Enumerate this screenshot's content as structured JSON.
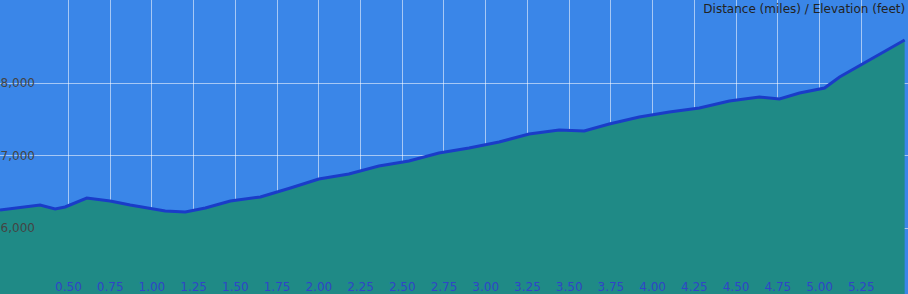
{
  "chart_data": {
    "type": "area",
    "title": "Distance (miles) / Elevation (feet)",
    "x": [
      0.09,
      0.33,
      0.42,
      0.48,
      0.61,
      0.75,
      0.87,
      1.08,
      1.2,
      1.32,
      1.47,
      1.65,
      1.83,
      2.0,
      2.18,
      2.36,
      2.54,
      2.72,
      2.9,
      3.08,
      3.26,
      3.44,
      3.59,
      3.74,
      3.92,
      4.1,
      4.28,
      4.46,
      4.64,
      4.76,
      4.88,
      5.03,
      5.12,
      5.3,
      5.51
    ],
    "values": [
      6250,
      6317,
      6262,
      6290,
      6414,
      6372,
      6317,
      6234,
      6220,
      6276,
      6372,
      6428,
      6552,
      6676,
      6745,
      6855,
      6924,
      7034,
      7103,
      7186,
      7297,
      7352,
      7338,
      7434,
      7531,
      7600,
      7655,
      7752,
      7807,
      7779,
      7862,
      7931,
      8083,
      8317,
      8593
    ],
    "color": "#1f8a86",
    "xlim": [
      0.09,
      5.53
    ],
    "xticks": [
      {
        "value": 0.5,
        "label": "0.50"
      },
      0.75,
      {
        "value": 1,
        "label": "1.00"
      },
      1.25,
      {
        "value": 1.5,
        "label": "1.50"
      },
      1.75,
      {
        "value": 2,
        "label": "2.00"
      },
      2.25,
      {
        "value": 2.5,
        "label": "2.50"
      },
      2.75,
      {
        "value": 3,
        "label": "3.00"
      },
      3.25,
      {
        "value": 3.5,
        "label": "3.50"
      },
      3.75,
      {
        "value": 4,
        "label": "4.00"
      },
      4.25,
      {
        "value": 4.5,
        "label": "4.50"
      },
      4.75,
      {
        "value": 5,
        "label": "5.00"
      },
      5.25
    ],
    "ylim": [
      5090,
      9145
    ],
    "yticks": [
      {
        "value": 6000,
        "label": "6,000"
      },
      {
        "value": 7000,
        "label": "7,000"
      },
      {
        "value": 8000,
        "label": "8,000"
      }
    ],
    "grid": true
  }
}
